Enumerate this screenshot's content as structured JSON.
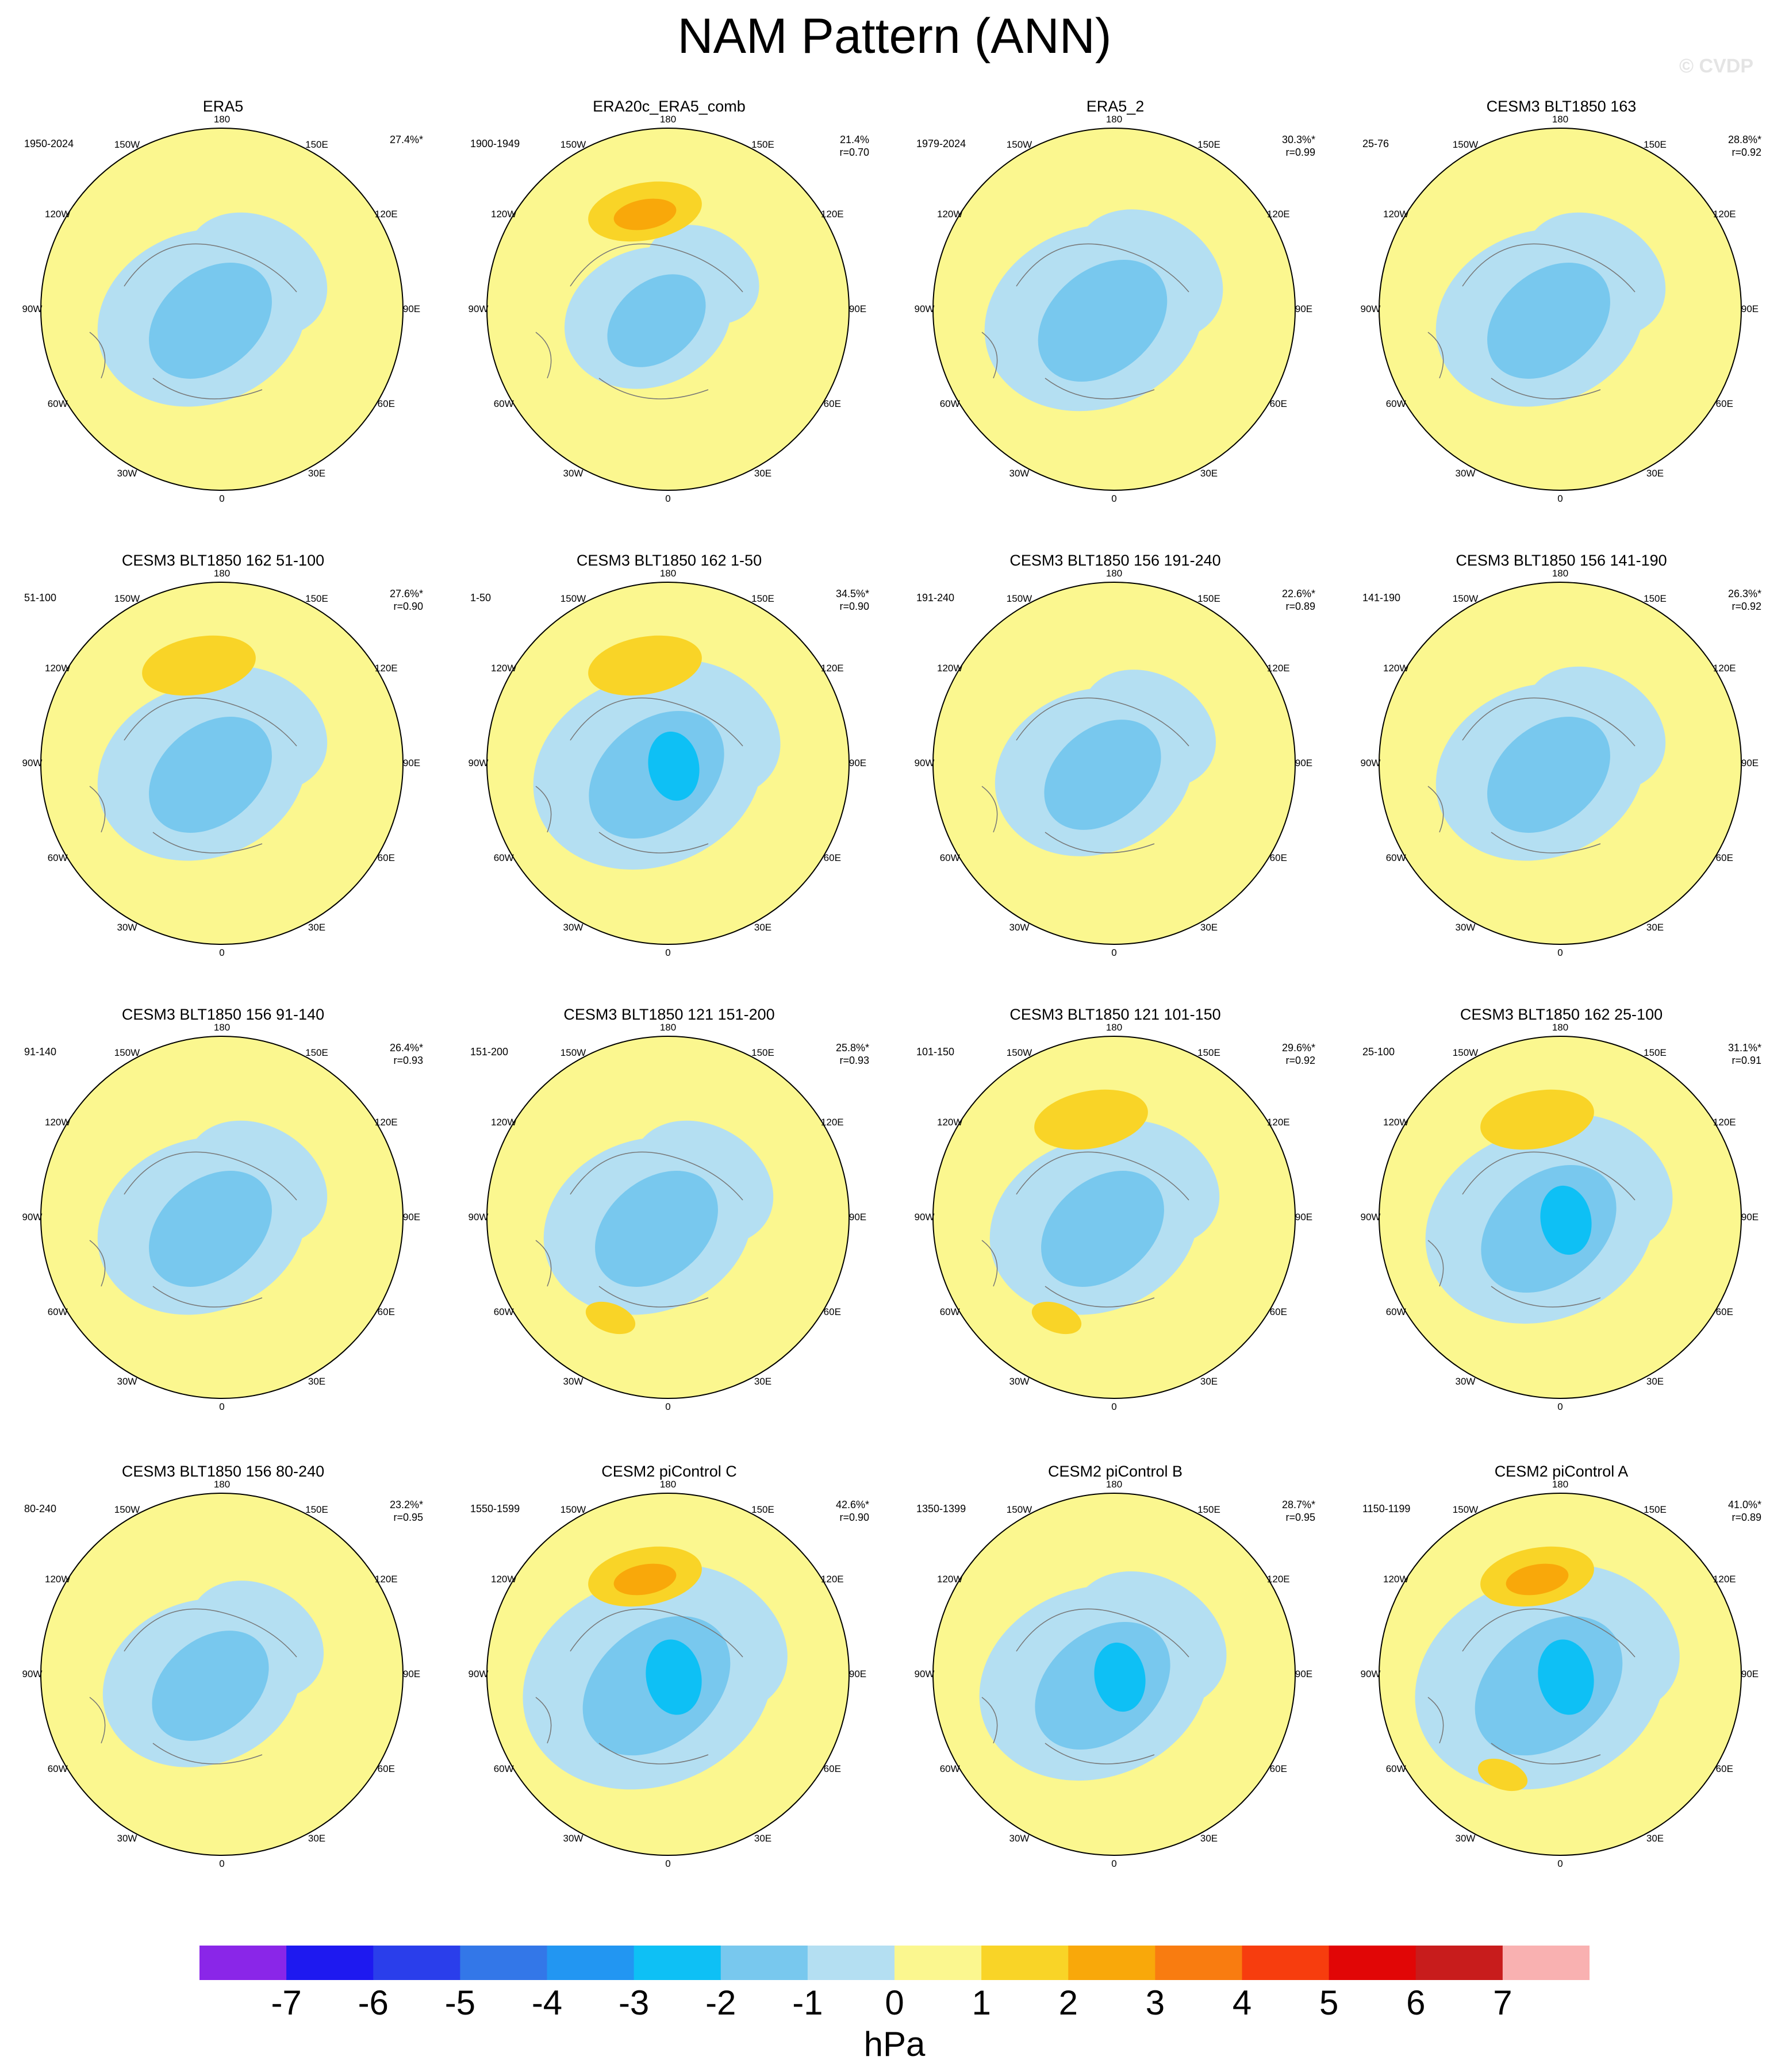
{
  "title": "NAM Pattern (ANN)",
  "watermark": "© CVDP",
  "lon_labels": [
    "180",
    "150E",
    "120E",
    "90E",
    "60E",
    "30E",
    "0",
    "30W",
    "60W",
    "90W",
    "120W",
    "150W"
  ],
  "panels": [
    {
      "title": "ERA5",
      "period": "1950-2024",
      "variance": "27.4%*",
      "pattern_corr": "",
      "blue_scale": 1.0,
      "ridge_pacific": 0,
      "ridge_atlantic": 0
    },
    {
      "title": "ERA20c_ERA5_comb",
      "period": "1900-1949",
      "variance": "21.4%",
      "pattern_corr": "r=0.70",
      "blue_scale": 0.8,
      "ridge_pacific": 2.5,
      "ridge_atlantic": 0
    },
    {
      "title": "ERA5_2",
      "period": "1979-2024",
      "variance": "30.3%*",
      "pattern_corr": "r=0.99",
      "blue_scale": 1.05,
      "ridge_pacific": 0,
      "ridge_atlantic": 0
    },
    {
      "title": "CESM3 BLT1850 163",
      "period": "25-76",
      "variance": "28.8%*",
      "pattern_corr": "r=0.92",
      "blue_scale": 1.0,
      "ridge_pacific": 0,
      "ridge_atlantic": 0
    },
    {
      "title": "CESM3 BLT1850 162 51-100",
      "period": "51-100",
      "variance": "27.6%*",
      "pattern_corr": "r=0.90",
      "blue_scale": 1.0,
      "ridge_pacific": 1.6,
      "ridge_atlantic": 0
    },
    {
      "title": "CESM3 BLT1850 162 1-50",
      "period": "1-50",
      "variance": "34.5%*",
      "pattern_corr": "r=0.90",
      "blue_scale": 1.1,
      "ridge_pacific": 1.7,
      "ridge_atlantic": 0
    },
    {
      "title": "CESM3 BLT1850 156 191-240",
      "period": "191-240",
      "variance": "22.6%*",
      "pattern_corr": "r=0.89",
      "blue_scale": 0.95,
      "ridge_pacific": 0,
      "ridge_atlantic": 0
    },
    {
      "title": "CESM3 BLT1850 156 141-190",
      "period": "141-190",
      "variance": "26.3%*",
      "pattern_corr": "r=0.92",
      "blue_scale": 1.0,
      "ridge_pacific": 0,
      "ridge_atlantic": 0
    },
    {
      "title": "CESM3 BLT1850 156 91-140",
      "period": "91-140",
      "variance": "26.4%*",
      "pattern_corr": "r=0.93",
      "blue_scale": 1.0,
      "ridge_pacific": 0,
      "ridge_atlantic": 0
    },
    {
      "title": "CESM3 BLT1850 121 151-200",
      "period": "151-200",
      "variance": "25.8%*",
      "pattern_corr": "r=0.93",
      "blue_scale": 1.0,
      "ridge_pacific": 0,
      "ridge_atlantic": 1.4
    },
    {
      "title": "CESM3 BLT1850 121 101-150",
      "period": "101-150",
      "variance": "29.6%*",
      "pattern_corr": "r=0.92",
      "blue_scale": 1.0,
      "ridge_pacific": 1.5,
      "ridge_atlantic": 1.4
    },
    {
      "title": "CESM3 BLT1850 162 25-100",
      "period": "25-100",
      "variance": "31.1%*",
      "pattern_corr": "r=0.91",
      "blue_scale": 1.1,
      "ridge_pacific": 1.5,
      "ridge_atlantic": 0
    },
    {
      "title": "CESM3 BLT1850 156 80-240",
      "period": "80-240",
      "variance": "23.2%*",
      "pattern_corr": "r=0.95",
      "blue_scale": 0.95,
      "ridge_pacific": 0,
      "ridge_atlantic": 0
    },
    {
      "title": "CESM2 piControl C",
      "period": "1550-1599",
      "variance": "42.6%*",
      "pattern_corr": "r=0.90",
      "blue_scale": 1.2,
      "ridge_pacific": 2.8,
      "ridge_atlantic": 0
    },
    {
      "title": "CESM2 piControl B",
      "period": "1350-1399",
      "variance": "28.7%*",
      "pattern_corr": "r=0.95",
      "blue_scale": 1.1,
      "ridge_pacific": 0,
      "ridge_atlantic": 0
    },
    {
      "title": "CESM2 piControl A",
      "period": "1150-1199",
      "variance": "41.0%*",
      "pattern_corr": "r=0.89",
      "blue_scale": 1.2,
      "ridge_pacific": 2.8,
      "ridge_atlantic": 1.5
    }
  ],
  "colorbar": {
    "units": "hPa",
    "tick_labels": [
      "-7",
      "-6",
      "-5",
      "-4",
      "-3",
      "-2",
      "-1",
      "0",
      "1",
      "2",
      "3",
      "4",
      "5",
      "6",
      "7"
    ],
    "colors": [
      "#8a26e8",
      "#1e19f0",
      "#2a3eeb",
      "#3377e8",
      "#2296f2",
      "#0ec0f5",
      "#78c8ee",
      "#b4dff2",
      "#fbf78f",
      "#f9d427",
      "#f9a80a",
      "#f97c10",
      "#f73d0e",
      "#e10606",
      "#c81c1c",
      "#f9b1b1"
    ]
  }
}
